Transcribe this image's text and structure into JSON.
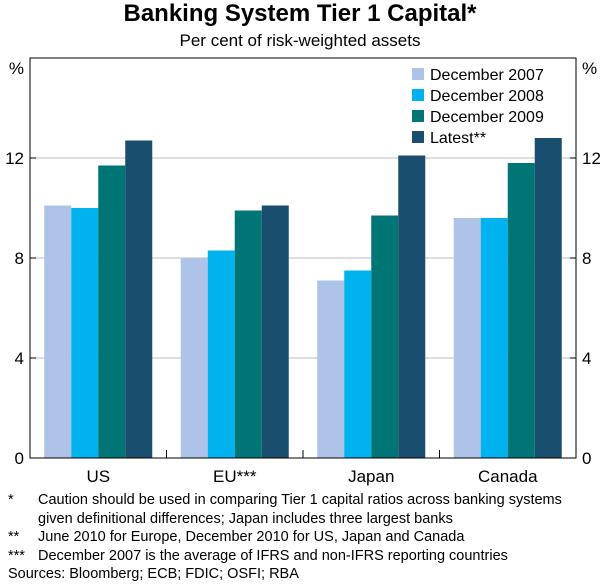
{
  "chart_data": {
    "type": "bar",
    "title": "Banking System Tier 1 Capital*",
    "subtitle": "Per cent of risk-weighted assets",
    "ylabel_left": "%",
    "ylabel_right": "%",
    "ylim": [
      0,
      16
    ],
    "yticks": [
      0,
      4,
      8,
      12
    ],
    "grid": true,
    "legend_position": "top-right",
    "categories": [
      "US",
      "EU***",
      "Japan",
      "Canada"
    ],
    "series": [
      {
        "name": "December 2007",
        "color": "#aec3e8",
        "values": [
          10.1,
          8.0,
          7.1,
          9.6
        ]
      },
      {
        "name": "December 2008",
        "color": "#00b2ee",
        "values": [
          10.0,
          8.3,
          7.5,
          9.6
        ]
      },
      {
        "name": "December 2009",
        "color": "#007575",
        "values": [
          11.7,
          9.9,
          9.7,
          11.8
        ]
      },
      {
        "name": "Latest**",
        "color": "#1a4e6e",
        "values": [
          12.7,
          10.1,
          12.1,
          12.8
        ]
      }
    ]
  },
  "notes": [
    {
      "mark": "*",
      "text": "Caution should be used in comparing Tier 1 capital ratios across banking systems given definitional differences; Japan includes three largest banks"
    },
    {
      "mark": "**",
      "text": "June 2010 for Europe, December 2010 for US, Japan and Canada"
    },
    {
      "mark": "***",
      "text": "December 2007 is the average of IFRS and non-IFRS reporting countries"
    }
  ],
  "source": "Sources: Bloomberg; ECB; FDIC; OSFI; RBA"
}
